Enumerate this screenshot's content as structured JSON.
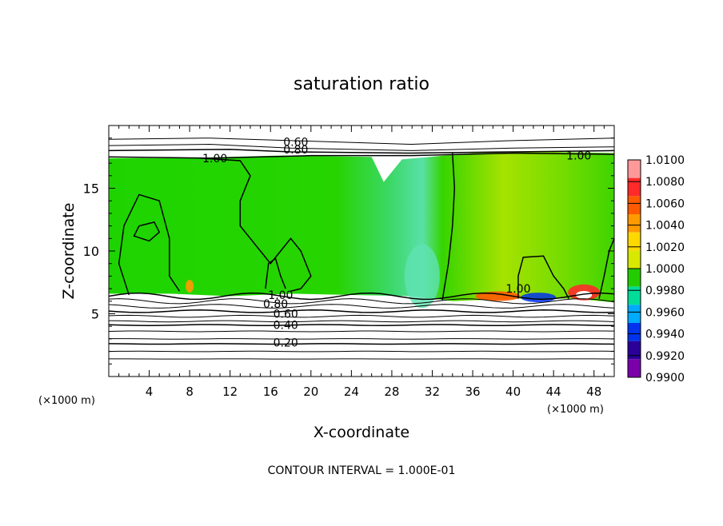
{
  "chart_data": {
    "type": "heatmap",
    "title": "saturation ratio",
    "xlabel": "X-coordinate",
    "ylabel": "Z-coordinate",
    "x_unit": "(×1000 m)",
    "y_unit": "(×1000 m)",
    "xlim": [
      0,
      50
    ],
    "ylim": [
      0,
      20
    ],
    "x_ticks": [
      4,
      8,
      12,
      16,
      20,
      24,
      28,
      32,
      36,
      40,
      44,
      48
    ],
    "y_ticks": [
      5,
      10,
      15
    ],
    "footer": "CONTOUR INTERVAL = 1.000E-01",
    "colorbar": {
      "labels": [
        "1.0100",
        "1.0080",
        "1.0060",
        "1.0040",
        "1.0020",
        "1.0000",
        "0.9980",
        "0.9960",
        "0.9940",
        "0.9920",
        "0.9900"
      ],
      "colors": [
        "#ff9999",
        "#ff2a2a",
        "#ff5a00",
        "#ff9a00",
        "#ffd800",
        "#d8e800",
        "#22cc00",
        "#00dd99",
        "#00aaff",
        "#0033ee",
        "#2a0099",
        "#7a00aa"
      ]
    },
    "contour_labels": [
      {
        "text": "0.60",
        "x": 18.5,
        "z": 18.7
      },
      {
        "text": "0.80",
        "x": 18.5,
        "z": 18.1
      },
      {
        "text": "1.00",
        "x": 10.5,
        "z": 17.4
      },
      {
        "text": "1.00",
        "x": 46.5,
        "z": 17.6
      },
      {
        "text": "1.00",
        "x": 40.5,
        "z": 7.0
      },
      {
        "text": "1.00",
        "x": 17.0,
        "z": 6.5
      },
      {
        "text": "0.80",
        "x": 16.5,
        "z": 5.8
      },
      {
        "text": "0.60",
        "x": 17.5,
        "z": 5.0
      },
      {
        "text": "0.40",
        "x": 17.5,
        "z": 4.1
      },
      {
        "text": "0.20",
        "x": 17.5,
        "z": 2.7
      }
    ]
  }
}
